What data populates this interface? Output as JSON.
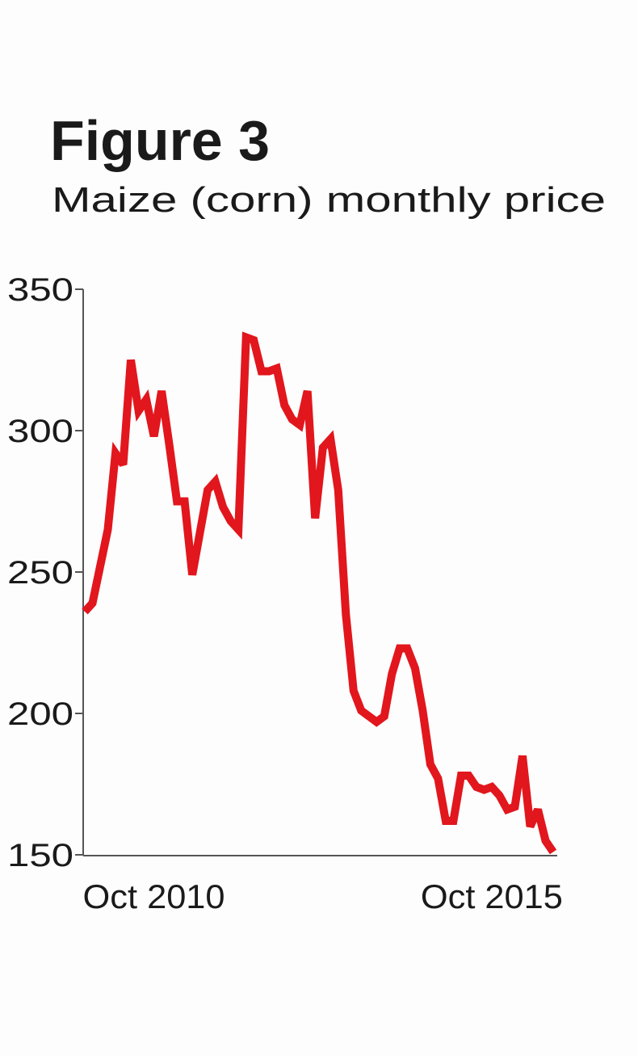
{
  "chart_data": {
    "type": "line",
    "title": "Figure 3",
    "subtitle": "Maize (corn) monthly price",
    "categories": [
      null,
      null,
      null,
      null,
      null,
      null,
      null,
      null,
      null,
      "Oct 2010",
      null,
      null,
      null,
      null,
      null,
      null,
      null,
      null,
      null,
      null,
      null,
      null,
      null,
      null,
      null,
      null,
      null,
      null,
      null,
      null,
      null,
      null,
      null,
      null,
      null,
      null,
      null,
      null,
      null,
      null,
      null,
      null,
      null,
      null,
      null,
      null,
      null,
      null,
      null,
      null,
      null,
      null,
      null,
      "Oct 2015",
      null,
      null,
      null,
      null,
      null,
      null,
      null,
      null
    ],
    "values": [
      236,
      239,
      252,
      265,
      292,
      288,
      325,
      307,
      311,
      298,
      314,
      295,
      275,
      275,
      249,
      264,
      279,
      282,
      273,
      268,
      265,
      333,
      332,
      321,
      321,
      322,
      309,
      304,
      302,
      314,
      269,
      294,
      297,
      279,
      235,
      208,
      201,
      199,
      197,
      199,
      214,
      223,
      223,
      216,
      201,
      182,
      177,
      162,
      162,
      178,
      178,
      174,
      173,
      174,
      171,
      166,
      167,
      185,
      160,
      166,
      155,
      151
    ],
    "color": "#e2161d",
    "ylim": [
      150,
      350
    ],
    "yticks": [
      150,
      200,
      250,
      300,
      350
    ]
  }
}
